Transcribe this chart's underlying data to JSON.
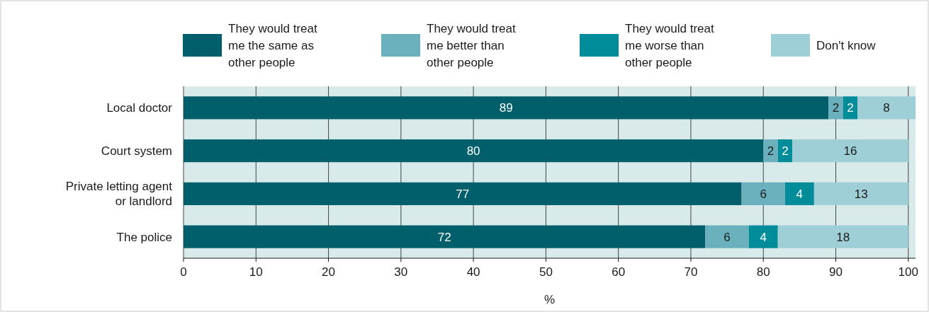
{
  "chart_data": {
    "type": "bar",
    "orientation": "horizontal",
    "stacked": true,
    "xlabel": "%",
    "categories": [
      "Local doctor",
      "Court system",
      "Private letting agent or landlord",
      "The police"
    ],
    "series": [
      {
        "name": "They would treat me the same as other people",
        "color": "#005f6b",
        "values": [
          89,
          80,
          77,
          72
        ]
      },
      {
        "name": "They would treat me better than other people",
        "color": "#6bb0bd",
        "values": [
          2,
          2,
          6,
          6
        ]
      },
      {
        "name": "They would treat me worse than other people",
        "color": "#008c99",
        "values": [
          2,
          2,
          4,
          4
        ]
      },
      {
        "name": "Don't know",
        "color": "#9fcfd6",
        "values": [
          8,
          16,
          13,
          18
        ]
      }
    ],
    "xlim": [
      0,
      101
    ],
    "xticks": [
      0,
      10,
      20,
      30,
      40,
      50,
      60,
      70,
      80,
      90,
      100
    ],
    "grid": "x",
    "legend": "top",
    "data_labels": true
  }
}
